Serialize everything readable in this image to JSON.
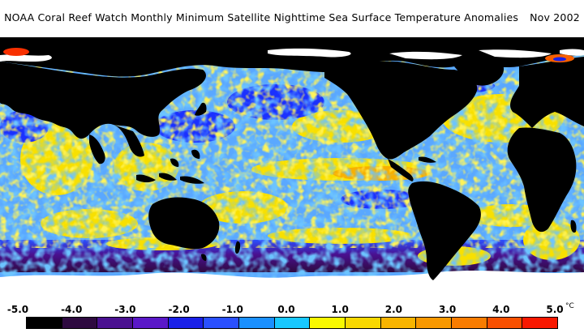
{
  "title": "NOAA Coral Reef Watch Monthly Minimum Satellite Nighttime Sea Surface Temperature Anomalies",
  "date": "Nov 2002",
  "colorbar": {
    "ticks": [
      "-5.0",
      "-4.0",
      "-3.0",
      "-2.0",
      "-1.0",
      "0.0",
      "1.0",
      "2.0",
      "3.0",
      "4.0",
      "5.0"
    ],
    "unit": "°C",
    "colors": [
      "#000000",
      "#2e0a40",
      "#4a1090",
      "#5a18c8",
      "#1a20e8",
      "#2a50ff",
      "#1a90ff",
      "#18c8ff",
      "#f8f800",
      "#f8d800",
      "#f8b400",
      "#f89800",
      "#f87c00",
      "#f85000",
      "#f81800"
    ]
  }
}
